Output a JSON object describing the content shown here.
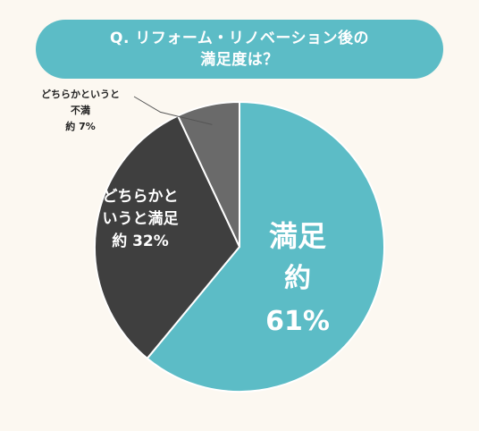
{
  "chart_data": {
    "type": "pie",
    "title_lines": [
      "Q. リフォーム・リノベーション後の",
      "満足度は？"
    ],
    "slices": [
      {
        "label": "満足",
        "value": 61,
        "value_label": "約 61%",
        "color": "#5cbcc6"
      },
      {
        "label": "どちらかというと満足",
        "label_lines": [
          "どちらかと",
          "いうと満足"
        ],
        "value": 32,
        "value_label": "約 32%",
        "color": "#3f3f3f"
      },
      {
        "label": "どちらかというと不満",
        "label_lines": [
          "どちらかというと",
          "不満"
        ],
        "value": 7,
        "value_label": "約 7%",
        "color": "#6a6a6a"
      }
    ],
    "legend": "none"
  },
  "colors": {
    "background": "#fcf8f1",
    "title_pill": "#5cbcc6",
    "slice_border": "#ffffff",
    "leader_line": "#555555"
  }
}
